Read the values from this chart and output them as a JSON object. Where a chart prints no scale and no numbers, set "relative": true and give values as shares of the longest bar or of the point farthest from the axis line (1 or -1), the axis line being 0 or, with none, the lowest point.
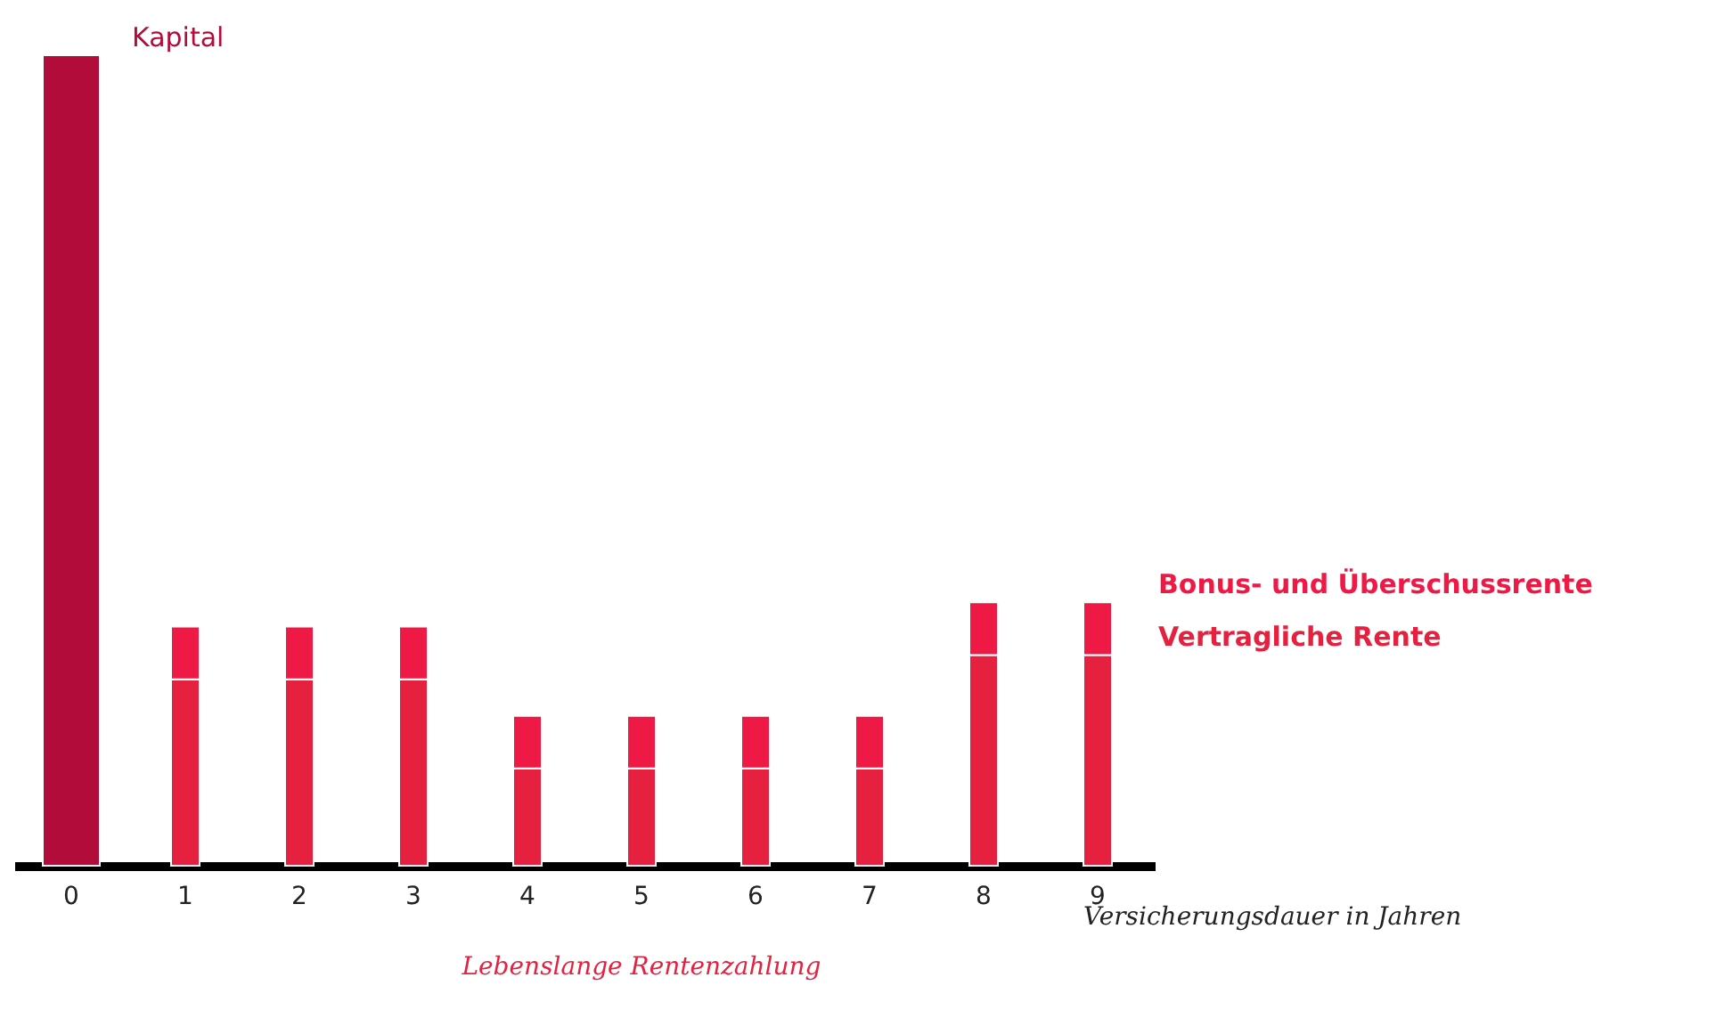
{
  "chart_data": {
    "type": "bar",
    "stacked": true,
    "relative": true,
    "categories": [
      "0",
      "1",
      "2",
      "3",
      "4",
      "5",
      "6",
      "7",
      "8",
      "9"
    ],
    "xlabel": "Versicherungsdauer in Jahren",
    "series": [
      {
        "name": "Kapital",
        "color": "#b20d3a",
        "values": [
          1,
          null,
          null,
          null,
          null,
          null,
          null,
          null,
          null,
          null
        ]
      },
      {
        "name": "Vertragliche Rente",
        "color": "#e5213f",
        "values": [
          null,
          0.23,
          0.23,
          0.23,
          0.12,
          0.12,
          0.12,
          0.12,
          0.26,
          0.26
        ]
      },
      {
        "name": "Bonus- und Überschussrente",
        "color": "#ee1a45",
        "values": [
          null,
          0.065,
          0.065,
          0.065,
          0.065,
          0.065,
          0.065,
          0.065,
          0.065,
          0.065
        ]
      }
    ],
    "annotations": [
      "Lebenslange Rentenzahlung"
    ]
  }
}
